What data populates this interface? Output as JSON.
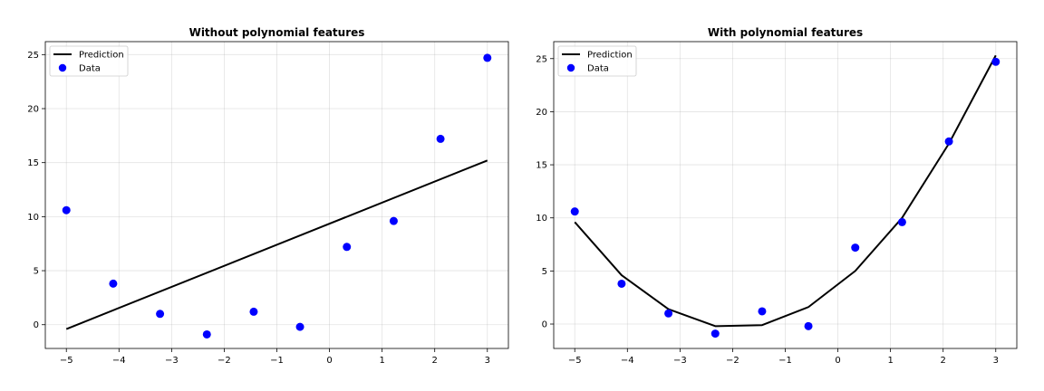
{
  "chart_data": [
    {
      "type": "line+scatter",
      "title": "Without polynomial features",
      "xlabel": "",
      "ylabel": "",
      "xlim": [
        -5.4,
        3.4
      ],
      "ylim": [
        -2.2,
        26.2
      ],
      "xticks": [
        -5,
        -4,
        -3,
        -2,
        -1,
        0,
        1,
        2,
        3
      ],
      "yticks": [
        0,
        5,
        10,
        15,
        20,
        25
      ],
      "grid": true,
      "legend": "top-left",
      "series": [
        {
          "name": "Prediction",
          "kind": "line",
          "color": "#000000",
          "x": [
            -5,
            3
          ],
          "y": [
            -0.4,
            15.2
          ]
        },
        {
          "name": "Data",
          "kind": "scatter",
          "color": "#0000ff",
          "x": [
            -5.0,
            -4.11,
            -3.22,
            -2.33,
            -1.44,
            -0.56,
            0.33,
            1.22,
            2.11,
            3.0
          ],
          "y": [
            10.6,
            3.8,
            1.0,
            -0.9,
            1.2,
            -0.2,
            7.2,
            9.6,
            17.2,
            24.7
          ]
        }
      ]
    },
    {
      "type": "line+scatter",
      "title": "With polynomial features",
      "xlabel": "",
      "ylabel": "",
      "xlim": [
        -5.4,
        3.4
      ],
      "ylim": [
        -2.3,
        26.6
      ],
      "xticks": [
        -5,
        -4,
        -3,
        -2,
        -1,
        0,
        1,
        2,
        3
      ],
      "yticks": [
        0,
        5,
        10,
        15,
        20,
        25
      ],
      "grid": true,
      "legend": "top-left",
      "series": [
        {
          "name": "Prediction",
          "kind": "line",
          "color": "#000000",
          "x": [
            -5.0,
            -4.11,
            -3.22,
            -2.33,
            -1.44,
            -0.56,
            0.33,
            1.22,
            2.11,
            3.0
          ],
          "y": [
            9.6,
            4.6,
            1.4,
            -0.2,
            -0.1,
            1.6,
            5.0,
            10.0,
            17.0,
            25.3
          ]
        },
        {
          "name": "Data",
          "kind": "scatter",
          "color": "#0000ff",
          "x": [
            -5.0,
            -4.11,
            -3.22,
            -2.33,
            -1.44,
            -0.56,
            0.33,
            1.22,
            2.11,
            3.0
          ],
          "y": [
            10.6,
            3.8,
            1.0,
            -0.9,
            1.2,
            -0.2,
            7.2,
            9.6,
            17.2,
            24.7
          ]
        }
      ]
    }
  ]
}
